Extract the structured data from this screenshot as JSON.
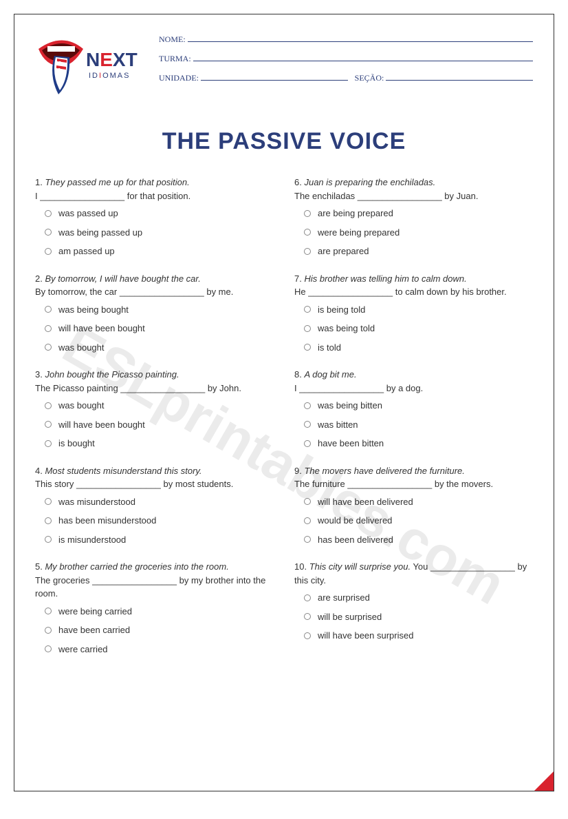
{
  "logo": {
    "brand_top": "NEXT",
    "brand_bottom": "IDIOMAS",
    "colors": {
      "lips": "#d9232e",
      "tongue_blue": "#1f3c88",
      "tongue_white": "#ffffff",
      "text_blue": "#2c3e7a",
      "accent_red": "#d9232e"
    }
  },
  "fields": {
    "nome": "NOME:",
    "turma": "TURMA:",
    "unidade": "UNIDADE:",
    "secao": "SEÇÃO:"
  },
  "title": "THE PASSIVE VOICE",
  "watermark": "ESLprintables.com",
  "questions_left": [
    {
      "num": "1.",
      "prompt": "They passed me up for that position.",
      "fill": "I _________________ for that position.",
      "opts": [
        "was passed up",
        "was being passed up",
        "am passed up"
      ]
    },
    {
      "num": "2.",
      "prompt": "By tomorrow, I will have bought the car.",
      "fill": "By tomorrow, the car _________________ by me.",
      "opts": [
        "was being bought",
        "will have been bought",
        "was bought"
      ]
    },
    {
      "num": "3.",
      "prompt": "John bought the Picasso painting.",
      "fill": "The Picasso painting _________________ by John.",
      "opts": [
        "was bought",
        "will have been bought",
        "is bought"
      ]
    },
    {
      "num": "4.",
      "prompt": "Most students misunderstand this story.",
      "fill": "This story _________________ by most students.",
      "opts": [
        "was misunderstood",
        "has been misunderstood",
        "is misunderstood"
      ]
    },
    {
      "num": "5.",
      "prompt": "My brother carried the groceries into the room.",
      "fill": "The groceries _________________ by my brother into the room.",
      "opts": [
        "were being carried",
        "have been carried",
        "were carried"
      ]
    }
  ],
  "questions_right": [
    {
      "num": "6.",
      "prompt": "Juan is preparing the enchiladas.",
      "fill": "The enchiladas _________________ by Juan.",
      "opts": [
        "are being prepared",
        "were being prepared",
        "are prepared"
      ]
    },
    {
      "num": "7.",
      "prompt": "His brother was telling him to calm down.",
      "fill": "He _________________ to calm down by his brother.",
      "opts": [
        "is being told",
        "was being told",
        "is told"
      ]
    },
    {
      "num": "8.",
      "prompt": "A dog bit me.",
      "fill": "I _________________ by a dog.",
      "opts": [
        "was being bitten",
        "was bitten",
        "have been bitten"
      ]
    },
    {
      "num": "9.",
      "prompt": "The movers have delivered the furniture.",
      "fill": "The furniture _________________ by the movers.",
      "opts": [
        "will have been delivered",
        "would be delivered",
        "has been delivered"
      ]
    },
    {
      "num": "10.",
      "prompt": "This city will surprise you.",
      "fill": "You _________________ by this city.",
      "opts": [
        "are surprised",
        "will be surprised",
        "will have been surprised"
      ]
    }
  ]
}
